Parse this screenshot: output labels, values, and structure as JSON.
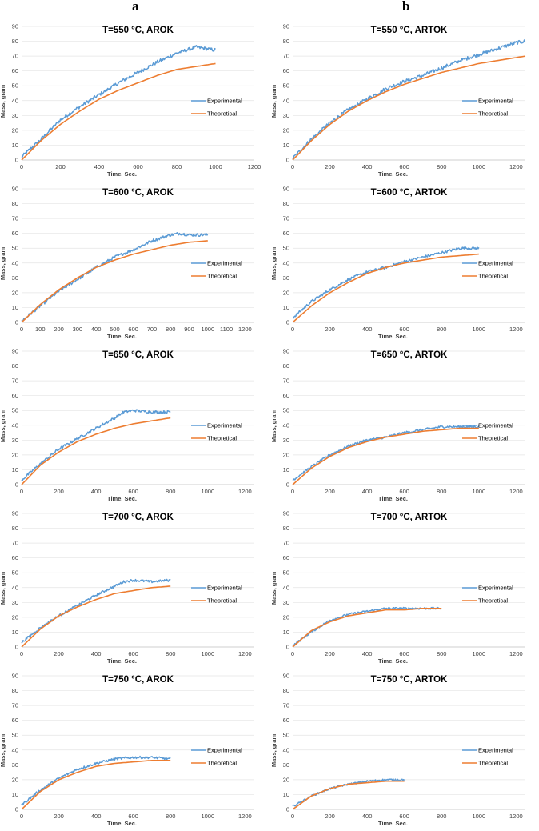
{
  "figure": {
    "col_labels": [
      "a",
      "b"
    ],
    "colors": {
      "experimental": "#5b9bd5",
      "theoretical": "#ed7d31"
    }
  },
  "chart_data": [
    {
      "type": "line",
      "title": "T=550 °C, AROK",
      "xlabel": "Time, Sec.",
      "ylabel": "Mass, gram",
      "xlim": [
        0,
        1200
      ],
      "ylim": [
        0,
        90
      ],
      "xticks": [
        0,
        200,
        400,
        600,
        800,
        1000,
        1200
      ],
      "yticks": [
        0,
        10,
        20,
        30,
        40,
        50,
        60,
        70,
        80,
        90
      ],
      "legend": [
        "Experimental",
        "Theoretical"
      ],
      "series": [
        {
          "name": "Experimental",
          "x": [
            0,
            100,
            200,
            300,
            400,
            500,
            600,
            700,
            800,
            900,
            1000
          ],
          "y": [
            2,
            14,
            27,
            36,
            44,
            52,
            59,
            66,
            72,
            76,
            74
          ],
          "noise": 1.2
        },
        {
          "name": "Theoretical",
          "x": [
            0,
            100,
            200,
            300,
            400,
            500,
            600,
            700,
            800,
            900,
            1000
          ],
          "y": [
            0,
            13,
            24,
            33,
            41,
            47,
            52,
            57,
            61,
            63,
            65
          ]
        }
      ]
    },
    {
      "type": "line",
      "title": "T=550 °C, ARTOK",
      "xlabel": "Time, Sec.",
      "ylabel": "Mass, gram",
      "xlim": [
        0,
        1250
      ],
      "ylim": [
        0,
        90
      ],
      "xticks": [
        0,
        200,
        400,
        600,
        800,
        1000,
        1200
      ],
      "yticks": [
        0,
        10,
        20,
        30,
        40,
        50,
        60,
        70,
        80,
        90
      ],
      "legend": [
        "Experimental",
        "Theoretical"
      ],
      "series": [
        {
          "name": "Experimental",
          "x": [
            0,
            100,
            200,
            300,
            400,
            500,
            600,
            700,
            800,
            900,
            1000,
            1100,
            1200,
            1250
          ],
          "y": [
            1,
            14,
            25,
            34,
            41,
            48,
            53,
            57,
            62,
            67,
            71,
            75,
            79,
            80
          ],
          "noise": 1.2
        },
        {
          "name": "Theoretical",
          "x": [
            0,
            100,
            200,
            300,
            400,
            500,
            600,
            700,
            800,
            900,
            1000,
            1100,
            1200,
            1250
          ],
          "y": [
            0,
            13,
            24,
            33,
            40,
            46,
            51,
            55,
            59,
            62,
            65,
            67,
            69,
            70
          ]
        }
      ]
    },
    {
      "type": "line",
      "title": "T=600 °C, AROK",
      "xlabel": "Time, Sec.",
      "ylabel": "Mass, gram",
      "xlim": [
        0,
        1250
      ],
      "ylim": [
        0,
        90
      ],
      "xticks": [
        0,
        100,
        200,
        300,
        400,
        500,
        600,
        700,
        800,
        900,
        1000,
        1100,
        1200
      ],
      "yticks": [
        0,
        10,
        20,
        30,
        40,
        50,
        60,
        70,
        80,
        90
      ],
      "legend": [
        "Experimental",
        "Theoretical"
      ],
      "series": [
        {
          "name": "Experimental",
          "x": [
            0,
            100,
            200,
            300,
            400,
            500,
            600,
            700,
            800,
            850,
            900,
            1000
          ],
          "y": [
            1,
            11,
            21,
            29,
            37,
            44,
            49,
            55,
            59,
            60,
            59,
            59
          ],
          "noise": 1.0
        },
        {
          "name": "Theoretical",
          "x": [
            0,
            100,
            200,
            300,
            400,
            500,
            600,
            700,
            800,
            900,
            1000
          ],
          "y": [
            0,
            12,
            22,
            30,
            37,
            42,
            46,
            49,
            52,
            54,
            55
          ]
        }
      ]
    },
    {
      "type": "line",
      "title": "T=600 °C, ARTOK",
      "xlabel": "Time, Sec.",
      "ylabel": "Mass, gram",
      "xlim": [
        0,
        1250
      ],
      "ylim": [
        0,
        90
      ],
      "xticks": [
        0,
        200,
        400,
        600,
        800,
        1000,
        1200
      ],
      "yticks": [
        0,
        10,
        20,
        30,
        40,
        50,
        60,
        70,
        80,
        90
      ],
      "legend": [
        "Experimental",
        "Theoretical"
      ],
      "series": [
        {
          "name": "Experimental",
          "x": [
            0,
            100,
            200,
            300,
            400,
            500,
            600,
            700,
            800,
            900,
            1000
          ],
          "y": [
            3,
            14,
            22,
            29,
            34,
            37,
            41,
            44,
            47,
            50,
            50
          ],
          "noise": 0.9
        },
        {
          "name": "Theoretical",
          "x": [
            0,
            100,
            200,
            300,
            400,
            500,
            600,
            700,
            800,
            900,
            1000
          ],
          "y": [
            0,
            11,
            20,
            27,
            33,
            37,
            40,
            42,
            44,
            45,
            46
          ]
        }
      ]
    },
    {
      "type": "line",
      "title": "T=650 °C, AROK",
      "xlabel": "Time, Sec.",
      "ylabel": "Mass, gram",
      "xlim": [
        0,
        1250
      ],
      "ylim": [
        0,
        90
      ],
      "xticks": [
        0,
        200,
        400,
        600,
        800,
        1000,
        1200
      ],
      "yticks": [
        0,
        10,
        20,
        30,
        40,
        50,
        60,
        70,
        80,
        90
      ],
      "legend": [
        "Experimental",
        "Theoretical"
      ],
      "series": [
        {
          "name": "Experimental",
          "x": [
            0,
            100,
            200,
            300,
            400,
            500,
            550,
            600,
            700,
            800
          ],
          "y": [
            3,
            14,
            24,
            31,
            38,
            45,
            49,
            50,
            49,
            49
          ],
          "noise": 0.9
        },
        {
          "name": "Theoretical",
          "x": [
            0,
            100,
            200,
            300,
            400,
            500,
            600,
            700,
            800
          ],
          "y": [
            0,
            13,
            22,
            29,
            34,
            38,
            41,
            43,
            45
          ]
        }
      ]
    },
    {
      "type": "line",
      "title": "T=650 °C, ARTOK",
      "xlabel": "Time, Sec.",
      "ylabel": "Mass, gram",
      "xlim": [
        0,
        1250
      ],
      "ylim": [
        0,
        90
      ],
      "xticks": [
        0,
        200,
        400,
        600,
        800,
        1000,
        1200
      ],
      "yticks": [
        0,
        10,
        20,
        30,
        40,
        50,
        60,
        70,
        80,
        90
      ],
      "legend": [
        "Experimental",
        "Theoretical"
      ],
      "series": [
        {
          "name": "Experimental",
          "x": [
            0,
            100,
            200,
            300,
            400,
            500,
            600,
            700,
            800,
            900,
            1000
          ],
          "y": [
            3,
            12,
            20,
            26,
            30,
            32,
            35,
            37,
            39,
            39,
            39
          ],
          "noise": 0.8
        },
        {
          "name": "Theoretical",
          "x": [
            0,
            100,
            200,
            300,
            400,
            500,
            600,
            700,
            800,
            900,
            1000
          ],
          "y": [
            0,
            11,
            19,
            25,
            29,
            32,
            34,
            36,
            37,
            38,
            38
          ]
        }
      ]
    },
    {
      "type": "line",
      "title": "T=700 °C, AROK",
      "xlabel": "Time, Sec.",
      "ylabel": "Mass, gram",
      "xlim": [
        0,
        1250
      ],
      "ylim": [
        0,
        90
      ],
      "xticks": [
        0,
        200,
        400,
        600,
        800,
        1000,
        1200
      ],
      "yticks": [
        0,
        10,
        20,
        30,
        40,
        50,
        60,
        70,
        80,
        90
      ],
      "legend": [
        "Experimental",
        "Theoretical"
      ],
      "series": [
        {
          "name": "Experimental",
          "x": [
            0,
            100,
            200,
            300,
            400,
            500,
            550,
            600,
            700,
            800
          ],
          "y": [
            3,
            13,
            21,
            28,
            35,
            41,
            44,
            45,
            44,
            45
          ],
          "noise": 0.8
        },
        {
          "name": "Theoretical",
          "x": [
            0,
            100,
            200,
            300,
            400,
            500,
            600,
            700,
            800
          ],
          "y": [
            0,
            12,
            21,
            27,
            32,
            36,
            38,
            40,
            41
          ]
        }
      ]
    },
    {
      "type": "line",
      "title": "T=700 °C, ARTOK",
      "xlabel": "Time, Sec.",
      "ylabel": "Mass, gram",
      "xlim": [
        0,
        1250
      ],
      "ylim": [
        0,
        90
      ],
      "xticks": [
        0,
        200,
        400,
        600,
        800,
        1000,
        1200
      ],
      "yticks": [
        0,
        10,
        20,
        30,
        40,
        50,
        60,
        70,
        80,
        90
      ],
      "legend": [
        "Experimental",
        "Theoretical"
      ],
      "series": [
        {
          "name": "Experimental",
          "x": [
            0,
            100,
            200,
            300,
            400,
            500,
            600,
            700,
            800
          ],
          "y": [
            1,
            10,
            18,
            22,
            24,
            26,
            26,
            26,
            26
          ],
          "noise": 0.7
        },
        {
          "name": "Theoretical",
          "x": [
            0,
            100,
            200,
            300,
            400,
            500,
            600,
            700,
            800
          ],
          "y": [
            0,
            11,
            17,
            21,
            23,
            25,
            25,
            26,
            26
          ]
        }
      ]
    },
    {
      "type": "line",
      "title": "T=750 °C, AROK",
      "xlabel": "Time, Sec.",
      "ylabel": "Mass, gram",
      "xlim": [
        0,
        1250
      ],
      "ylim": [
        0,
        90
      ],
      "xticks": [
        0,
        200,
        400,
        600,
        800,
        1000,
        1200
      ],
      "yticks": [
        0,
        10,
        20,
        30,
        40,
        50,
        60,
        70,
        80,
        90
      ],
      "legend": [
        "Experimental",
        "Theoretical"
      ],
      "series": [
        {
          "name": "Experimental",
          "x": [
            0,
            100,
            200,
            300,
            400,
            500,
            600,
            700,
            800
          ],
          "y": [
            3,
            13,
            21,
            27,
            31,
            34,
            35,
            35,
            34
          ],
          "noise": 0.8
        },
        {
          "name": "Theoretical",
          "x": [
            0,
            100,
            200,
            300,
            400,
            500,
            600,
            700,
            800
          ],
          "y": [
            0,
            12,
            20,
            25,
            29,
            31,
            32,
            33,
            33
          ]
        }
      ]
    },
    {
      "type": "line",
      "title": "T=750 °C, ARTOK",
      "xlabel": "Time, Sec.",
      "ylabel": "Mass, gram",
      "xlim": [
        0,
        1250
      ],
      "ylim": [
        0,
        90
      ],
      "xticks": [
        0,
        200,
        400,
        600,
        800,
        1000,
        1200
      ],
      "yticks": [
        0,
        10,
        20,
        30,
        40,
        50,
        60,
        70,
        80,
        90
      ],
      "legend": [
        "Experimental",
        "Theoretical"
      ],
      "series": [
        {
          "name": "Experimental",
          "x": [
            0,
            100,
            200,
            300,
            400,
            500,
            600
          ],
          "y": [
            2,
            9,
            14,
            17,
            19,
            20,
            20
          ],
          "noise": 0.6
        },
        {
          "name": "Theoretical",
          "x": [
            0,
            100,
            200,
            300,
            400,
            500,
            600
          ],
          "y": [
            0,
            9,
            14,
            17,
            18,
            19,
            19
          ]
        }
      ]
    }
  ]
}
